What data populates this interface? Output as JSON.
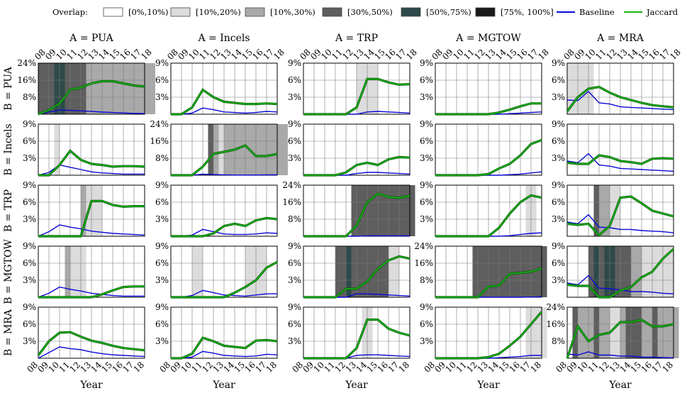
{
  "legend": {
    "overlap_label": "Overlap:",
    "bins": [
      {
        "label": "[0%,10%)",
        "color": "#ffffff"
      },
      {
        "label": "[10%,20%)",
        "color": "#dcdcdc"
      },
      {
        "label": "[10%,30%)",
        "color": "#a9a9a9"
      },
      {
        "label": "[30%,50%)",
        "color": "#5e5e5e"
      },
      {
        "label": "[50%,75%)",
        "color": "#2e4a4a"
      },
      {
        "label": "[75%, 100%]",
        "color": "#1a1a1a"
      }
    ],
    "series": [
      {
        "label": "Baseline",
        "color": "#0a0ad8"
      },
      {
        "label": "Jaccard",
        "color": "#17b417"
      }
    ]
  },
  "chart_data": {
    "type": "line",
    "x_label": "Year",
    "x_ticks": [
      "08",
      "09",
      "10",
      "11",
      "12",
      "13",
      "14",
      "15",
      "16",
      "17",
      "18"
    ],
    "communities": [
      "PUA",
      "Incels",
      "TRP",
      "MGTOW",
      "MRA"
    ],
    "col_titles": [
      "A = PUA",
      "A = Incels",
      "A = TRP",
      "A = MGTOW",
      "A = MRA"
    ],
    "row_labels": [
      "B = PUA",
      "B = Incels",
      "B = TRP",
      "B = MGTOW",
      "B = MRA"
    ],
    "y_ticks_9": [
      "3%",
      "6%",
      "9%"
    ],
    "y_ticks_24": [
      "8%",
      "16%",
      "24%"
    ],
    "panels": [
      [
        {
          "ymax": 24,
          "jaccard": [
            0,
            2,
            5,
            11.5,
            12.5,
            14.5,
            15.5,
            15.5,
            14.5,
            13.5,
            13
          ],
          "baseline": [
            0,
            1,
            2,
            1.8,
            1.6,
            1.3,
            1,
            0.8,
            0.6,
            0.4,
            0.3
          ],
          "bands": [
            [
              0,
              1,
              3
            ],
            [
              1,
              1.5,
              3
            ],
            [
              1.5,
              2.5,
              4
            ],
            [
              2.5,
              3,
              3
            ],
            [
              3,
              4.5,
              3
            ],
            [
              4.5,
              11,
              2
            ]
          ]
        },
        {
          "ymax": 9,
          "jaccard": [
            0,
            0,
            1.2,
            4.3,
            3,
            2.2,
            2,
            1.8,
            1.8,
            1.9,
            1.8
          ],
          "baseline": [
            0,
            0,
            0.2,
            1.1,
            0.8,
            0.4,
            0.3,
            0.2,
            0.3,
            0.5,
            0.4
          ],
          "bands": []
        },
        {
          "ymax": 9,
          "jaccard": [
            0,
            0,
            0,
            0,
            0,
            1.2,
            6.2,
            6.2,
            5.6,
            5.2,
            5.3
          ],
          "baseline": [
            0,
            0,
            0,
            0,
            0,
            0,
            0.4,
            0.5,
            0.4,
            0.3,
            0.2
          ],
          "bands": [
            [
              5,
              7,
              1
            ]
          ]
        },
        {
          "ymax": 9,
          "jaccard": [
            0,
            0,
            0,
            0,
            0,
            0,
            0.3,
            0.8,
            1.4,
            1.9,
            1.9
          ],
          "baseline": [
            0,
            0,
            0,
            0,
            0,
            0,
            0,
            0.1,
            0.2,
            0.3,
            0.4
          ],
          "bands": []
        },
        {
          "ymax": 9,
          "jaccard": [
            0.5,
            3,
            4.5,
            4.8,
            3.8,
            3,
            2.5,
            2,
            1.6,
            1.4,
            1.2
          ],
          "baseline": [
            2.5,
            2.4,
            4,
            2,
            1.8,
            1.3,
            1.2,
            1.1,
            1,
            0.9,
            0.8
          ],
          "bands": [
            [
              0,
              2.5,
              1
            ]
          ]
        }
      ],
      [
        {
          "ymax": 9,
          "jaccard": [
            0,
            0,
            1.8,
            4.3,
            2.7,
            2,
            1.8,
            1.5,
            1.6,
            1.6,
            1.5
          ],
          "baseline": [
            0,
            0.5,
            1.8,
            1.4,
            1,
            0.6,
            0.4,
            0.3,
            0.2,
            0.2,
            0.2
          ],
          "bands": [
            [
              1.5,
              2,
              1
            ]
          ]
        },
        {
          "ymax": 24,
          "jaccard": [
            0,
            0,
            0,
            4,
            10,
            11,
            12,
            14,
            9,
            9,
            10
          ],
          "baseline": [
            0,
            0,
            0,
            0.5,
            0.3,
            0.2,
            0.1,
            0.1,
            0.1,
            0.2,
            0.2
          ],
          "bands": [
            [
              3.5,
              4,
              3
            ],
            [
              4,
              4.5,
              2
            ],
            [
              4.5,
              5,
              1
            ],
            [
              5,
              5.5,
              2
            ],
            [
              5.5,
              11,
              2
            ]
          ]
        },
        {
          "ymax": 9,
          "jaccard": [
            0,
            0,
            0,
            0,
            0.5,
            1.8,
            2.2,
            1.8,
            2.8,
            3.2,
            3.1
          ],
          "baseline": [
            0,
            0,
            0,
            0,
            0,
            0.3,
            0.5,
            0.5,
            0.4,
            0.3,
            0.2
          ],
          "bands": []
        },
        {
          "ymax": 9,
          "jaccard": [
            0,
            0,
            0,
            0,
            0,
            0.2,
            1.2,
            2,
            3.5,
            5.5,
            6.2
          ],
          "baseline": [
            0,
            0,
            0,
            0,
            0,
            0,
            0,
            0.1,
            0.2,
            0.4,
            0.6
          ],
          "bands": []
        },
        {
          "ymax": 9,
          "jaccard": [
            2.2,
            2,
            2,
            3.5,
            3.2,
            2.5,
            2.3,
            2,
            2.9,
            3,
            2.9
          ],
          "baseline": [
            2.5,
            2.2,
            3.8,
            1.8,
            1.6,
            1.2,
            1.1,
            1,
            0.9,
            0.8,
            0.7
          ],
          "bands": []
        }
      ],
      [
        {
          "ymax": 9,
          "jaccard": [
            0,
            0,
            0,
            0,
            0,
            6.2,
            6.2,
            5.5,
            5.2,
            5.3,
            5.3
          ],
          "baseline": [
            0,
            0.8,
            2,
            1.6,
            1.3,
            0.9,
            0.7,
            0.5,
            0.4,
            0.3,
            0.2
          ],
          "bands": [
            [
              4,
              4.5,
              2
            ],
            [
              4.5,
              5,
              1
            ],
            [
              5,
              6,
              1
            ]
          ]
        },
        {
          "ymax": 9,
          "jaccard": [
            0,
            0,
            0,
            0,
            0.5,
            1.8,
            2.2,
            1.8,
            2.8,
            3.2,
            3
          ],
          "baseline": [
            0,
            0,
            0.2,
            1.2,
            0.8,
            0.4,
            0.3,
            0.3,
            0.4,
            0.6,
            0.5
          ],
          "bands": []
        },
        {
          "ymax": 24,
          "jaccard": [
            0,
            0,
            0,
            0,
            0,
            5,
            16,
            20,
            18.5,
            18,
            19
          ],
          "baseline": [
            0,
            0,
            0,
            0,
            0,
            0,
            0.2,
            0.2,
            0.2,
            0.2,
            0.2
          ],
          "bands": [
            [
              4.5,
              10.5,
              3
            ]
          ]
        },
        {
          "ymax": 9,
          "jaccard": [
            0,
            0,
            0,
            0,
            0,
            0,
            1.5,
            4,
            6,
            7.2,
            6.8
          ],
          "baseline": [
            0,
            0,
            0,
            0,
            0,
            0,
            0,
            0.1,
            0.3,
            0.5,
            0.6
          ],
          "bands": [
            [
              8.5,
              9.5,
              1
            ]
          ]
        },
        {
          "ymax": 9,
          "jaccard": [
            2.2,
            2,
            2.2,
            0.2,
            1.8,
            6.8,
            7,
            5.8,
            4.5,
            4,
            3.5
          ],
          "baseline": [
            2.5,
            2.2,
            3.8,
            1.6,
            1.5,
            1.2,
            1.2,
            1,
            0.9,
            0.8,
            0.6
          ],
          "bands": [
            [
              2.5,
              3,
              3
            ],
            [
              3,
              4,
              2
            ],
            [
              4,
              5,
              1
            ]
          ]
        }
      ],
      [
        {
          "ymax": 9,
          "jaccard": [
            0,
            0,
            0,
            0,
            0,
            0,
            0.5,
            1.2,
            1.8,
            1.9,
            1.9
          ],
          "baseline": [
            0,
            0.7,
            1.8,
            1.4,
            1.1,
            0.7,
            0.5,
            0.3,
            0.2,
            0.2,
            0.2
          ],
          "bands": [
            [
              2.5,
              3,
              2
            ],
            [
              3,
              4.5,
              1
            ]
          ]
        },
        {
          "ymax": 9,
          "jaccard": [
            0,
            0,
            0,
            0,
            0,
            0,
            0.8,
            1.8,
            3,
            5.2,
            6.2
          ],
          "baseline": [
            0,
            0,
            0.3,
            1.2,
            0.8,
            0.4,
            0.3,
            0.2,
            0.4,
            0.6,
            0.6
          ],
          "bands": [
            [
              2,
              3,
              1
            ],
            [
              7,
              9,
              1
            ]
          ]
        },
        {
          "ymax": 9,
          "jaccard": [
            0,
            0,
            0,
            0,
            1.5,
            1.5,
            2.8,
            5,
            6.5,
            7.2,
            6.8
          ],
          "baseline": [
            0,
            0,
            0,
            0,
            0,
            0.6,
            0.6,
            0.5,
            0.4,
            0.3,
            0.2
          ],
          "bands": [
            [
              3,
              4,
              3
            ],
            [
              4,
              4.5,
              4
            ],
            [
              4.5,
              8,
              3
            ],
            [
              8,
              9,
              1
            ]
          ]
        },
        {
          "ymax": 24,
          "jaccard": [
            0,
            0,
            0,
            0,
            0,
            5,
            5.5,
            11,
            11.5,
            12,
            13.5
          ],
          "baseline": [
            0,
            0,
            0,
            0,
            0,
            0,
            0,
            0,
            0,
            0.1,
            0.2
          ],
          "bands": [
            [
              3.5,
              10.5,
              3
            ]
          ]
        },
        {
          "ymax": 9,
          "jaccard": [
            2.2,
            2,
            2,
            0,
            0,
            1.2,
            1.8,
            3.5,
            4.5,
            6.8,
            8.5
          ],
          "baseline": [
            2.5,
            2.2,
            3.8,
            1.6,
            1.5,
            1.3,
            1,
            1,
            0.9,
            0.7,
            0.6
          ],
          "bands": [
            [
              2,
              2.5,
              3
            ],
            [
              2.5,
              3,
              4
            ],
            [
              3,
              3.5,
              3
            ],
            [
              3.5,
              4.5,
              4
            ],
            [
              4.5,
              6,
              3
            ],
            [
              6,
              7,
              2
            ],
            [
              7,
              10,
              1
            ]
          ]
        }
      ],
      [
        {
          "ymax": 9,
          "jaccard": [
            0.5,
            3,
            4.5,
            4.6,
            3.8,
            3.1,
            2.7,
            2.2,
            1.8,
            1.6,
            1.4
          ],
          "baseline": [
            0,
            1,
            2,
            1.7,
            1.5,
            1.1,
            0.8,
            0.6,
            0.5,
            0.4,
            0.3
          ],
          "bands": []
        },
        {
          "ymax": 9,
          "jaccard": [
            0,
            0,
            0.8,
            3.6,
            3,
            2.2,
            2,
            1.8,
            3.1,
            3.2,
            3
          ],
          "baseline": [
            0,
            0,
            0.2,
            1.2,
            0.9,
            0.5,
            0.4,
            0.3,
            0.4,
            0.7,
            0.6
          ],
          "bands": []
        },
        {
          "ymax": 9,
          "jaccard": [
            0,
            0,
            0,
            0,
            0,
            1.8,
            6.8,
            6.8,
            5.2,
            4.5,
            4
          ],
          "baseline": [
            0,
            0,
            0,
            0,
            0,
            0.5,
            0.6,
            0.6,
            0.5,
            0.4,
            0.3
          ],
          "bands": [
            [
              5.5,
              6.5,
              1
            ]
          ]
        },
        {
          "ymax": 9,
          "jaccard": [
            0,
            0,
            0,
            0,
            0,
            0.2,
            0.8,
            2.2,
            3.8,
            6,
            8.2
          ],
          "baseline": [
            0,
            0,
            0,
            0,
            0,
            0,
            0.1,
            0.2,
            0.3,
            0.5,
            0.5
          ],
          "bands": [
            [
              8.5,
              10.5,
              1
            ]
          ]
        },
        {
          "ymax": 24,
          "jaccard": [
            0,
            15,
            8,
            11,
            12,
            17,
            17,
            18,
            15,
            15,
            16
          ],
          "baseline": [
            2,
            1.5,
            3,
            1.5,
            1.5,
            1,
            1,
            0.5,
            0.5,
            0.3,
            0.2
          ],
          "bands": [
            [
              0.5,
              1,
              3
            ],
            [
              1,
              2.5,
              2
            ],
            [
              2.5,
              3,
              3
            ],
            [
              3,
              4,
              2
            ],
            [
              4,
              5,
              1
            ],
            [
              5,
              5.5,
              2
            ],
            [
              5.5,
              7,
              3
            ],
            [
              7,
              8,
              2
            ],
            [
              8,
              8.5,
              3
            ],
            [
              8.5,
              10.5,
              2
            ]
          ]
        }
      ]
    ]
  }
}
